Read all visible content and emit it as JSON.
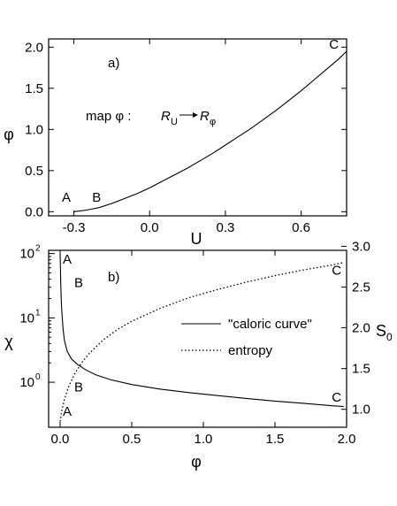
{
  "chart_data": [
    {
      "type": "line",
      "panel_label": "a)",
      "xlabel": "U",
      "ylabel": "φ",
      "xlim": [
        -0.4,
        0.78
      ],
      "ylim": [
        -0.05,
        2.1
      ],
      "xticks": [
        "-0.3",
        "0.0",
        "0.3",
        "0.6"
      ],
      "xtick_values": [
        -0.3,
        0.0,
        0.3,
        0.6
      ],
      "yticks": [
        "0.0",
        "0.5",
        "1.0",
        "1.5",
        "2.0"
      ],
      "ytick_values": [
        0.0,
        0.5,
        1.0,
        1.5,
        2.0
      ],
      "series": [
        {
          "style": "solid",
          "x": [
            -0.3,
            -0.25,
            -0.2,
            -0.15,
            -0.1,
            -0.05,
            0.0,
            0.05,
            0.1,
            0.15,
            0.2,
            0.25,
            0.3,
            0.35,
            0.4,
            0.45,
            0.5,
            0.55,
            0.6,
            0.65,
            0.7,
            0.75,
            0.78
          ],
          "y": [
            0.0,
            0.02,
            0.05,
            0.1,
            0.16,
            0.22,
            0.29,
            0.37,
            0.45,
            0.53,
            0.62,
            0.71,
            0.81,
            0.91,
            1.01,
            1.12,
            1.23,
            1.35,
            1.47,
            1.6,
            1.73,
            1.86,
            1.95
          ]
        }
      ],
      "annotations": [
        {
          "text": "A",
          "x": -0.33,
          "y": 0.12
        },
        {
          "text": "B",
          "x": -0.21,
          "y": 0.12
        },
        {
          "text": "C",
          "x": 0.73,
          "y": 1.98
        }
      ],
      "formula": {
        "prefix": "map φ : ",
        "r1": "R",
        "r1_sub": "U",
        "r2": "R",
        "r2_sub": "φ"
      }
    },
    {
      "type": "line",
      "panel_label": "b)",
      "xlabel": "φ",
      "ylabel": "χ",
      "y2label": "S",
      "y2label_sub": "0",
      "xlim": [
        -0.08,
        2.0
      ],
      "ylim_log": [
        -0.7,
        2.05
      ],
      "y2lim": [
        0.78,
        2.95
      ],
      "yscale": "log",
      "xticks": [
        "0.0",
        "0.5",
        "1.0",
        "1.5",
        "2.0"
      ],
      "xtick_values": [
        0.0,
        0.5,
        1.0,
        1.5,
        2.0
      ],
      "yticks": [
        {
          "base": "10",
          "exp": "0",
          "value": 1
        },
        {
          "base": "10",
          "exp": "1",
          "value": 10
        },
        {
          "base": "10",
          "exp": "2",
          "value": 100
        }
      ],
      "y2ticks": [
        "1.0",
        "1.5",
        "2.0",
        "2.5",
        "3.0"
      ],
      "y2tick_values": [
        1.0,
        1.5,
        2.0,
        2.5,
        3.0
      ],
      "series": [
        {
          "name": "\"caloric curve\"",
          "style": "solid",
          "axis": "left",
          "x": [
            0.0,
            0.005,
            0.01,
            0.02,
            0.03,
            0.05,
            0.08,
            0.12,
            0.18,
            0.25,
            0.35,
            0.5,
            0.7,
            0.9,
            1.1,
            1.3,
            1.5,
            1.7,
            1.9,
            1.98
          ],
          "y": [
            100,
            30,
            15,
            7,
            4.5,
            3.0,
            2.3,
            1.9,
            1.55,
            1.3,
            1.1,
            0.92,
            0.78,
            0.69,
            0.62,
            0.56,
            0.51,
            0.47,
            0.43,
            0.42
          ]
        },
        {
          "name": "entropy",
          "style": "dotted",
          "axis": "right",
          "x": [
            0.0,
            0.01,
            0.03,
            0.06,
            0.1,
            0.15,
            0.2,
            0.3,
            0.4,
            0.5,
            0.7,
            0.9,
            1.1,
            1.3,
            1.5,
            1.7,
            1.9,
            1.98
          ],
          "y": [
            0.85,
            0.97,
            1.12,
            1.28,
            1.43,
            1.57,
            1.68,
            1.85,
            1.98,
            2.08,
            2.24,
            2.37,
            2.47,
            2.56,
            2.64,
            2.71,
            2.77,
            2.8
          ]
        }
      ],
      "annotations": [
        {
          "text": "A",
          "x": 0.05,
          "axis": "left",
          "y": 70
        },
        {
          "text": "B",
          "x": 0.13,
          "axis": "left",
          "y": 30
        },
        {
          "text": "B",
          "x": 0.13,
          "axis": "right",
          "y": 1.22
        },
        {
          "text": "A",
          "x": 0.05,
          "axis": "right",
          "y": 0.92
        },
        {
          "text": "C",
          "x": 1.93,
          "axis": "right",
          "y": 2.65
        },
        {
          "text": "C",
          "x": 1.93,
          "axis": "left",
          "y": 0.5
        }
      ]
    }
  ]
}
